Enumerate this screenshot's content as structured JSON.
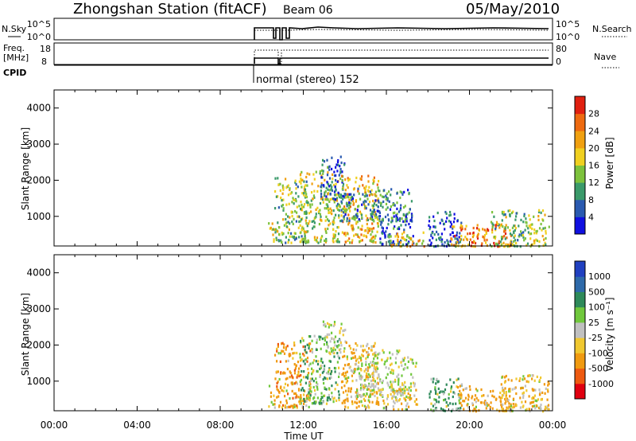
{
  "header": {
    "station": "Zhongshan Station (fitACF)",
    "beam": "Beam 06",
    "date": "05/May/2010"
  },
  "aux_panels": {
    "nsky_label": "N.Sky",
    "nsky_ticks": [
      "10^5",
      "10^0"
    ],
    "nsearch_label": "N.Search",
    "freq_label": "Freq.",
    "freq_unit": "[MHz]",
    "freq_ticks": [
      "18",
      "8"
    ],
    "nave_label": "Nave",
    "nave_ticks": [
      "80",
      "0"
    ],
    "cpid_label": "CPID",
    "cpid_text": "normal (stereo) 152"
  },
  "colors": {
    "power": [
      "#1010e0",
      "#2a5ab0",
      "#3a9a6a",
      "#7dc23c",
      "#f0d020",
      "#f0a010",
      "#ee6a10",
      "#e02010"
    ],
    "velocity": [
      "#e00010",
      "#ee5a10",
      "#f09a10",
      "#f0c830",
      "#c0c0c0",
      "#70c83c",
      "#2e8a5a",
      "#2e6aaa",
      "#2040c0"
    ]
  },
  "chart_data": [
    {
      "type": "heatmap",
      "name": "power",
      "ylabel": "Slant Range [km]",
      "yticks": [
        "1000",
        "2000",
        "3000",
        "4000"
      ],
      "ylim": [
        180,
        4500
      ],
      "xlim": [
        0,
        24
      ],
      "colorbar_label": "Power [dB]",
      "colorbar_ticks": [
        "4",
        "8",
        "12",
        "16",
        "20",
        "24",
        "28"
      ],
      "blobs": [
        {
          "t0": 10.3,
          "t1": 10.6,
          "r0": 300,
          "r1": 900,
          "v": 18
        },
        {
          "t0": 10.6,
          "t1": 12.2,
          "r0": 300,
          "r1": 2100,
          "v": 14
        },
        {
          "t0": 11.8,
          "t1": 13.7,
          "r0": 300,
          "r1": 2300,
          "v": 16
        },
        {
          "t0": 12.8,
          "t1": 14.0,
          "r0": 1500,
          "r1": 2700,
          "v": 6
        },
        {
          "t0": 13.8,
          "t1": 15.6,
          "r0": 300,
          "r1": 2200,
          "v": 20
        },
        {
          "t0": 13.5,
          "t1": 17.2,
          "r0": 900,
          "r1": 1800,
          "v": 9
        },
        {
          "t0": 15.6,
          "t1": 17.3,
          "r0": 250,
          "r1": 1100,
          "v": 6
        },
        {
          "t0": 16.0,
          "t1": 17.8,
          "r0": 200,
          "r1": 600,
          "v": 20
        },
        {
          "t0": 18.0,
          "t1": 19.6,
          "r0": 200,
          "r1": 1200,
          "v": 5
        },
        {
          "t0": 19.0,
          "t1": 22.0,
          "r0": 200,
          "r1": 800,
          "v": 24
        },
        {
          "t0": 21.0,
          "t1": 23.8,
          "r0": 200,
          "r1": 1200,
          "v": 14
        }
      ]
    },
    {
      "type": "heatmap",
      "name": "velocity",
      "xlabel": "Time UT",
      "xticks": [
        "00:00",
        "04:00",
        "08:00",
        "12:00",
        "16:00",
        "20:00",
        "00:00"
      ],
      "ylabel": "Slant Range [km]",
      "yticks": [
        "1000",
        "2000",
        "3000",
        "4000"
      ],
      "ylim": [
        180,
        4500
      ],
      "xlim": [
        0,
        24
      ],
      "colorbar_label": "Velocity [m s⁻¹]",
      "colorbar_ticks": [
        "1000",
        "500",
        "100",
        "25",
        "-25",
        "-100",
        "-500",
        "-1000"
      ],
      "blobs": [
        {
          "t0": 10.3,
          "t1": 10.6,
          "r0": 300,
          "r1": 900,
          "v": -100
        },
        {
          "t0": 10.6,
          "t1": 12.3,
          "r0": 300,
          "r1": 2100,
          "v": -300
        },
        {
          "t0": 11.8,
          "t1": 13.7,
          "r0": 400,
          "r1": 2300,
          "v": 60
        },
        {
          "t0": 12.9,
          "t1": 14.0,
          "r0": 1800,
          "r1": 2700,
          "v": 0
        },
        {
          "t0": 13.8,
          "t1": 15.6,
          "r0": 300,
          "r1": 2100,
          "v": -150
        },
        {
          "t0": 14.5,
          "t1": 17.4,
          "r0": 600,
          "r1": 1900,
          "v": 5
        },
        {
          "t0": 15.8,
          "t1": 17.5,
          "r0": 250,
          "r1": 900,
          "v": -60
        },
        {
          "t0": 18.0,
          "t1": 19.6,
          "r0": 200,
          "r1": 1100,
          "v": 200
        },
        {
          "t0": 19.4,
          "t1": 22.2,
          "r0": 200,
          "r1": 900,
          "v": -200
        },
        {
          "t0": 21.5,
          "t1": 23.8,
          "r0": 200,
          "r1": 1200,
          "v": -80
        }
      ]
    }
  ]
}
